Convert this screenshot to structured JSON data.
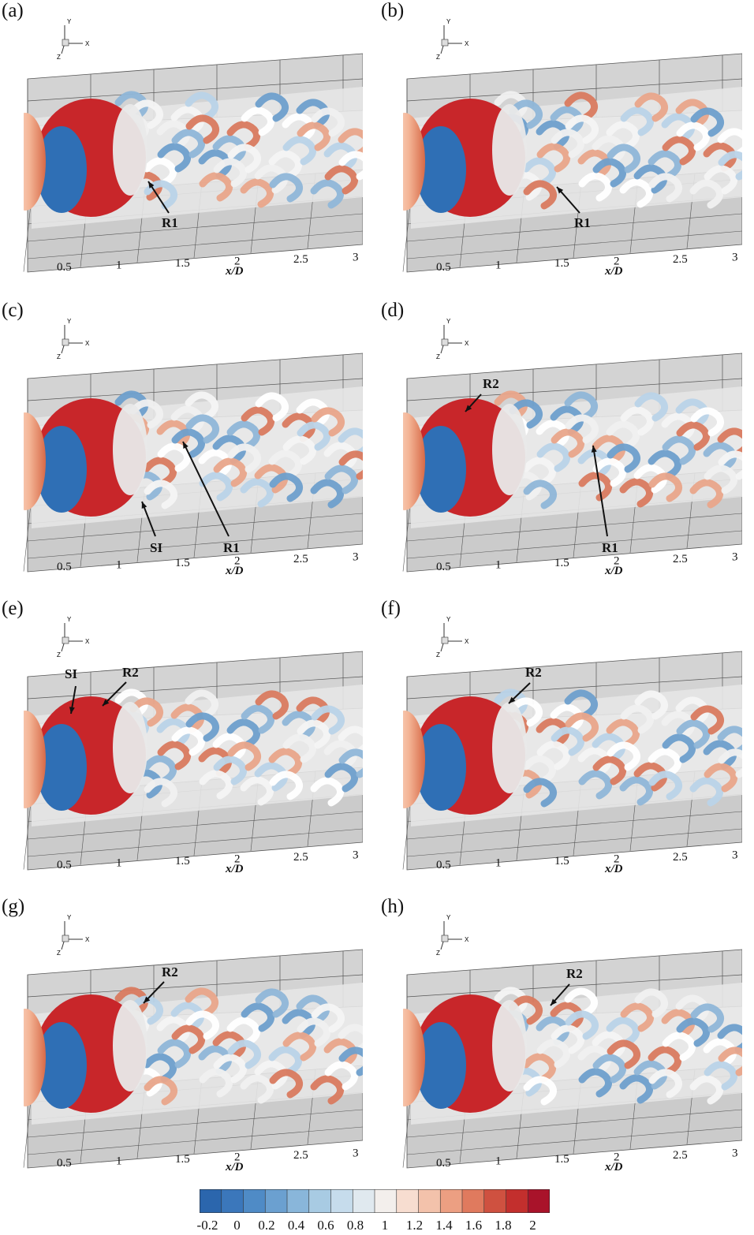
{
  "panels": [
    {
      "label": "(a)",
      "annotations": [
        "R1"
      ]
    },
    {
      "label": "(b)",
      "annotations": [
        "R1"
      ]
    },
    {
      "label": "(c)",
      "annotations": [
        "SI",
        "R1"
      ]
    },
    {
      "label": "(d)",
      "annotations": [
        "R2",
        "R1"
      ]
    },
    {
      "label": "(e)",
      "annotations": [
        "SI",
        "R2"
      ]
    },
    {
      "label": "(f)",
      "annotations": [
        "R2"
      ]
    },
    {
      "label": "(g)",
      "annotations": [
        "R2"
      ]
    },
    {
      "label": "(h)",
      "annotations": [
        "R2"
      ]
    }
  ],
  "triad_labels": {
    "y": "Y",
    "x": "X",
    "z": "Z"
  },
  "axis": {
    "ticks": [
      "0.5",
      "1",
      "1.5",
      "2",
      "2.5",
      "3"
    ],
    "xlabel": "x/D"
  },
  "colorbar": {
    "ticks": [
      "-0.2",
      "0",
      "0.2",
      "0.4",
      "0.6",
      "0.8",
      "1",
      "1.2",
      "1.4",
      "1.6",
      "1.8",
      "2"
    ],
    "colors": [
      "#2b66ad",
      "#3b77bb",
      "#4f8bc6",
      "#6ba0d0",
      "#89b6da",
      "#a8cbe3",
      "#c6dcec",
      "#e0e9ef",
      "#f3efec",
      "#f7ddd0",
      "#f3c2ab",
      "#ec9f82",
      "#e07a5e",
      "#cf5140",
      "#c32f2d",
      "#a9132a"
    ]
  },
  "colors": {
    "red": "#c8262a",
    "blue": "#2f6fb5",
    "light": "#eeeeee",
    "floor": "#c9c9c9"
  }
}
